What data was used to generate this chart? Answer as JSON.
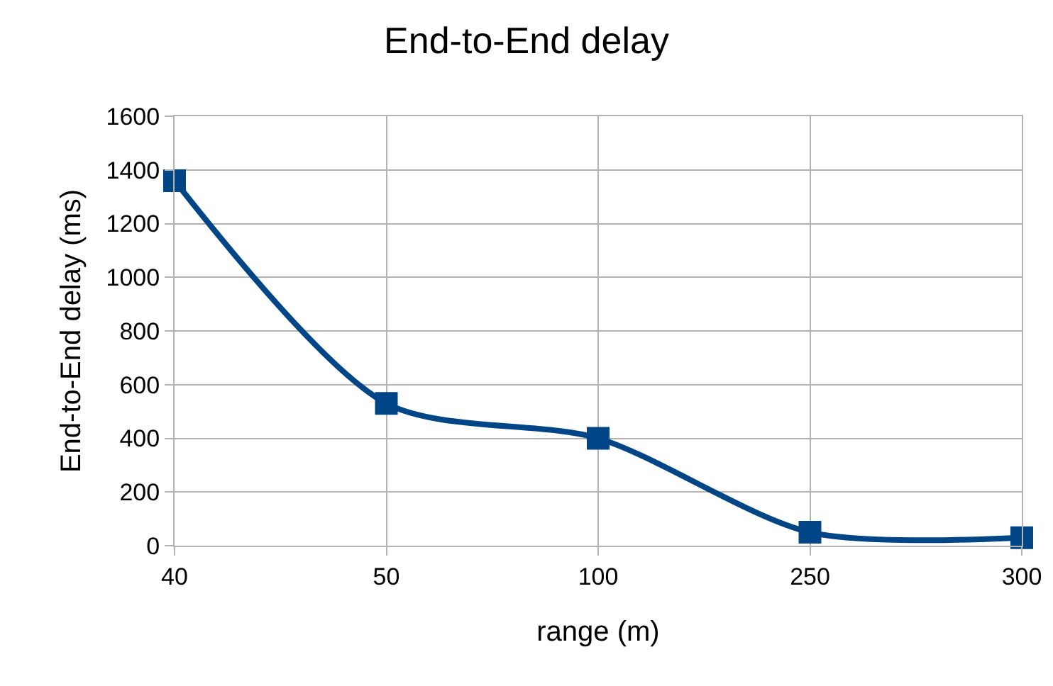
{
  "chart_data": {
    "type": "line",
    "title": "End-to-End delay",
    "xlabel": "range (m)",
    "ylabel": "End-to-End delay (ms)",
    "categories": [
      "40",
      "50",
      "100",
      "250",
      "300"
    ],
    "series": [
      {
        "color": "#004586",
        "values": [
          1360,
          530,
          400,
          50,
          30
        ]
      }
    ],
    "ylim": [
      0,
      1600
    ],
    "yticks": [
      0,
      200,
      400,
      600,
      800,
      1000,
      1200,
      1400,
      1600
    ],
    "grid": true,
    "legend": false,
    "marker": "square",
    "line_style": "solid"
  }
}
